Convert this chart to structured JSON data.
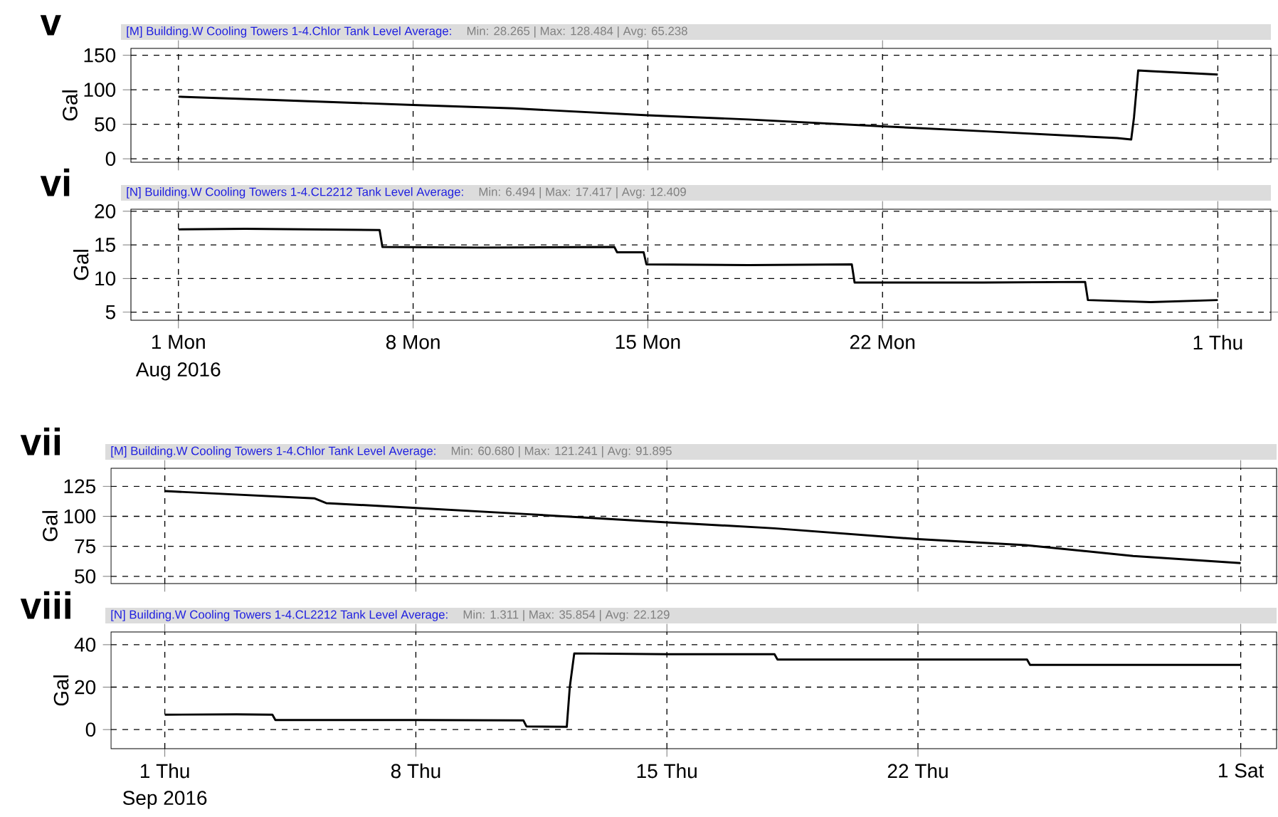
{
  "chart_data": [
    {
      "type": "line",
      "title": "[M] Building.W Cooling Towers 1-4.Chlor Tank Level Average:",
      "subtitle": "Min: 28.265 | Max: 128.484 | Avg: 65.238",
      "ylabel": "Gal",
      "annotations": [
        "v"
      ],
      "xlim": [
        "2016-07-30T14:00",
        "2016-09-02T14:00"
      ],
      "ylim": [
        -5,
        160
      ],
      "yticks": [
        0,
        50,
        100,
        150
      ],
      "xticks": [
        {
          "value": "2016-08-01",
          "label": null
        },
        {
          "value": "2016-08-08",
          "label": null
        },
        {
          "value": "2016-08-15",
          "label": null
        },
        {
          "value": "2016-08-22",
          "label": null
        },
        {
          "value": "2016-09-01",
          "label": null
        }
      ],
      "tick_labels": "y",
      "grid": true,
      "series": [
        {
          "color": "#000000",
          "x": [
            "2016-08-01",
            "2016-08-04",
            "2016-08-08",
            "2016-08-11",
            "2016-08-15",
            "2016-08-18",
            "2016-08-22",
            "2016-08-25",
            "2016-08-29T00:00",
            "2016-08-29T10:00",
            "2016-08-29T12:00",
            "2016-08-29T15:00",
            "2016-08-30T00:00",
            "2016-09-01"
          ],
          "values": [
            90,
            85,
            78,
            73,
            63,
            57,
            47,
            40,
            30,
            28,
            60,
            128,
            127,
            122
          ]
        }
      ]
    },
    {
      "type": "line",
      "title": "[N] Building.W Cooling Towers 1-4.CL2212 Tank Level Average:",
      "subtitle": "Min: 6.494 | Max: 17.417 | Avg: 12.409",
      "ylabel": "Gal",
      "annotations": [
        "vi",
        "Aug 2016"
      ],
      "xlim": [
        "2016-07-30T14:00",
        "2016-09-02T14:00"
      ],
      "ylim": [
        3.8,
        20.3
      ],
      "yticks": [
        5,
        10,
        15,
        20
      ],
      "xticks": [
        {
          "value": "2016-08-01",
          "label": "1 Mon"
        },
        {
          "value": "2016-08-08",
          "label": "8 Mon"
        },
        {
          "value": "2016-08-15",
          "label": "15 Mon"
        },
        {
          "value": "2016-08-22",
          "label": "22 Mon"
        },
        {
          "value": "2016-09-01",
          "label": "1 Thu"
        }
      ],
      "grid": true,
      "series": [
        {
          "color": "#000000",
          "x": [
            "2016-08-01",
            "2016-08-03",
            "2016-08-05",
            "2016-08-07T00:00",
            "2016-08-07T02:00",
            "2016-08-10",
            "2016-08-14T00:00",
            "2016-08-14T02:00",
            "2016-08-14T21:00",
            "2016-08-14T23:00",
            "2016-08-18",
            "2016-08-21T02:00",
            "2016-08-21T04:00",
            "2016-08-25",
            "2016-08-28T01:00",
            "2016-08-28T03:00",
            "2016-08-30",
            "2016-09-01"
          ],
          "values": [
            17.3,
            17.4,
            17.3,
            17.2,
            14.7,
            14.6,
            14.7,
            13.9,
            13.9,
            12.1,
            12.0,
            12.1,
            9.4,
            9.4,
            9.5,
            6.8,
            6.5,
            6.8
          ]
        }
      ]
    },
    {
      "type": "line",
      "title": "[M] Building.W Cooling Towers 1-4.Chlor Tank Level Average:",
      "subtitle": "Min: 60.680 | Max: 121.241 | Avg: 91.895",
      "ylabel": "Gal",
      "annotations": [
        "vii"
      ],
      "xlim": [
        "2016-08-30T12:00",
        "2016-10-02T00:00"
      ],
      "ylim": [
        44,
        140
      ],
      "yticks": [
        50,
        75,
        100,
        125
      ],
      "xticks": [
        {
          "value": "2016-09-01",
          "label": null
        },
        {
          "value": "2016-09-08",
          "label": null
        },
        {
          "value": "2016-09-15",
          "label": null
        },
        {
          "value": "2016-09-22",
          "label": null
        },
        {
          "value": "2016-10-01",
          "label": null
        }
      ],
      "tick_labels": "y",
      "grid": true,
      "series": [
        {
          "color": "#000000",
          "x": [
            "2016-09-01",
            "2016-09-05T04:00",
            "2016-09-05T12:00",
            "2016-09-08",
            "2016-09-11",
            "2016-09-15",
            "2016-09-18",
            "2016-09-22",
            "2016-09-25",
            "2016-09-28",
            "2016-10-01"
          ],
          "values": [
            121,
            115,
            111,
            107,
            102,
            95,
            90,
            81,
            76,
            67,
            61
          ]
        }
      ]
    },
    {
      "type": "line",
      "title": "[N] Building.W Cooling Towers 1-4.CL2212 Tank Level Average:",
      "subtitle": "Min: 1.311 | Max: 35.854 | Avg: 22.129",
      "ylabel": "Gal",
      "annotations": [
        "viii",
        "Sep 2016"
      ],
      "xlim": [
        "2016-08-30T12:00",
        "2016-10-02T00:00"
      ],
      "ylim": [
        -9,
        46
      ],
      "yticks": [
        0,
        20,
        40
      ],
      "xticks": [
        {
          "value": "2016-09-01",
          "label": "1 Thu"
        },
        {
          "value": "2016-09-08",
          "label": "8 Thu"
        },
        {
          "value": "2016-09-15",
          "label": "15 Thu"
        },
        {
          "value": "2016-09-22",
          "label": "22 Thu"
        },
        {
          "value": "2016-10-01",
          "label": "1 Sat"
        }
      ],
      "grid": true,
      "series": [
        {
          "color": "#000000",
          "x": [
            "2016-09-01",
            "2016-09-03",
            "2016-09-04T00:00",
            "2016-09-04T02:00",
            "2016-09-08",
            "2016-09-11T00:00",
            "2016-09-11T02:00",
            "2016-09-12T05:00",
            "2016-09-12T07:00",
            "2016-09-12T10:00",
            "2016-09-15",
            "2016-09-18T00:00",
            "2016-09-18T02:00",
            "2016-09-25T01:00",
            "2016-09-25T03:00",
            "2016-10-01"
          ],
          "values": [
            7.0,
            7.2,
            7.0,
            4.5,
            4.5,
            4.3,
            1.5,
            1.3,
            20,
            35.9,
            35.5,
            35.5,
            33,
            33,
            30.5,
            30.5
          ]
        }
      ]
    }
  ]
}
